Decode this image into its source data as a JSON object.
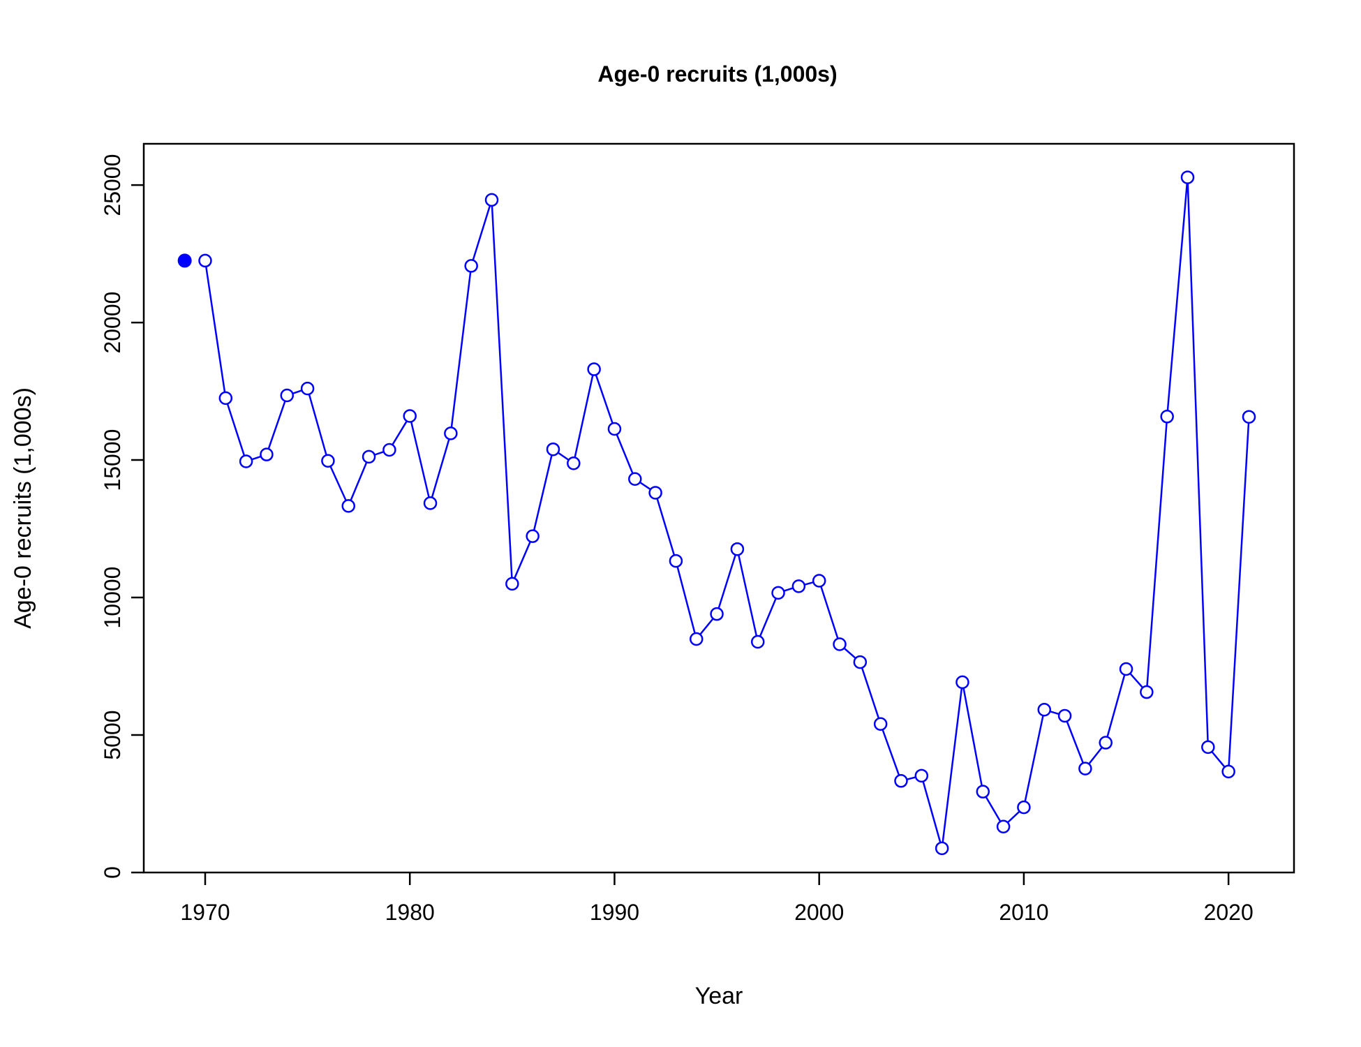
{
  "chart_data": {
    "type": "line",
    "title": "Age-0 recruits (1,000s)",
    "xlabel": "Year",
    "ylabel": "Age-0 recruits (1,000s)",
    "xlim": [
      1967,
      2023.2
    ],
    "ylim": [
      0,
      26500
    ],
    "xticks": [
      1970,
      1980,
      1990,
      2000,
      2010,
      2020
    ],
    "yticks": [
      0,
      5000,
      10000,
      15000,
      20000,
      25000
    ],
    "grid": false,
    "line_color": "#0000ff",
    "initial_point": {
      "x": 1969,
      "y": 22250,
      "marker": "filled-circle"
    },
    "series": [
      {
        "marker": "open-circle",
        "x": [
          1970,
          1971,
          1972,
          1973,
          1974,
          1975,
          1976,
          1977,
          1978,
          1979,
          1980,
          1981,
          1982,
          1983,
          1984,
          1985,
          1986,
          1987,
          1988,
          1989,
          1990,
          1991,
          1992,
          1993,
          1994,
          1995,
          1996,
          1997,
          1998,
          1999,
          2000,
          2001,
          2002,
          2003,
          2004,
          2005,
          2006,
          2007,
          2008,
          2009,
          2010,
          2011,
          2012,
          2013,
          2014,
          2015,
          2016,
          2017,
          2018,
          2019,
          2020,
          2021
        ],
        "values": [
          22250,
          17250,
          14950,
          15200,
          17350,
          17600,
          14970,
          13330,
          15120,
          15370,
          16600,
          13430,
          15970,
          22060,
          24460,
          10500,
          12230,
          15390,
          14880,
          18300,
          16130,
          14310,
          13810,
          11330,
          8490,
          9400,
          11760,
          8390,
          10170,
          10410,
          10610,
          8300,
          7650,
          5400,
          3330,
          3520,
          880,
          6920,
          2940,
          1670,
          2370,
          5920,
          5700,
          3780,
          4720,
          7400,
          6560,
          16580,
          25280,
          4560,
          3670,
          16570
        ]
      }
    ]
  }
}
